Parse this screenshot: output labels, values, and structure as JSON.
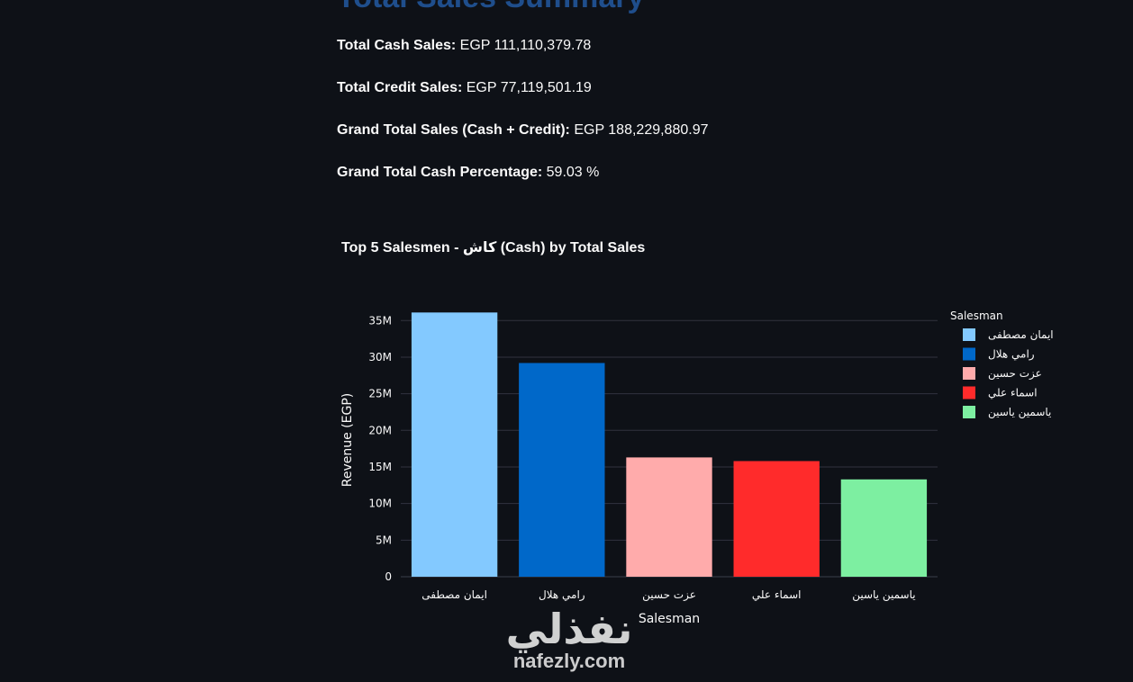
{
  "summary": {
    "heading": "Total Sales Summary",
    "cash_label": "Total Cash Sales:",
    "cash_value": "EGP 111,110,379.78",
    "credit_label": "Total Credit Sales:",
    "credit_value": "EGP 77,119,501.19",
    "grand_label": "Grand Total Sales (Cash + Credit):",
    "grand_value": "EGP 188,229,880.97",
    "pct_label": "Grand Total Cash Percentage:",
    "pct_value": "59.03 %"
  },
  "watermark": {
    "arabic": "نفذلي",
    "latin": "nafezly.com"
  },
  "chart_data": {
    "type": "bar",
    "title": "Top 5 Salesmen - كاش (Cash) by Total Sales",
    "xlabel": "Salesman",
    "ylabel": "Revenue (EGP)",
    "categories": [
      "ايمان مصطفى",
      "رامي هلال",
      "عزت حسين",
      "اسماء علي",
      "ياسمين ياسين"
    ],
    "values": [
      36100000,
      29200000,
      16300000,
      15800000,
      13300000
    ],
    "colors": [
      "#83c9ff",
      "#0068c9",
      "#ffabab",
      "#ff2b2b",
      "#7defa1"
    ],
    "ylim": [
      0,
      37000000
    ],
    "yticks": [
      0,
      5000000,
      10000000,
      15000000,
      20000000,
      25000000,
      30000000,
      35000000
    ],
    "ytick_labels": [
      "0",
      "5M",
      "10M",
      "15M",
      "20M",
      "25M",
      "30M",
      "35M"
    ],
    "grid": true,
    "legend": {
      "title": "Salesman",
      "position": "right",
      "entries": [
        "ايمان مصطفى",
        "رامي هلال",
        "عزت حسين",
        "اسماء علي",
        "ياسمين ياسين"
      ]
    }
  }
}
